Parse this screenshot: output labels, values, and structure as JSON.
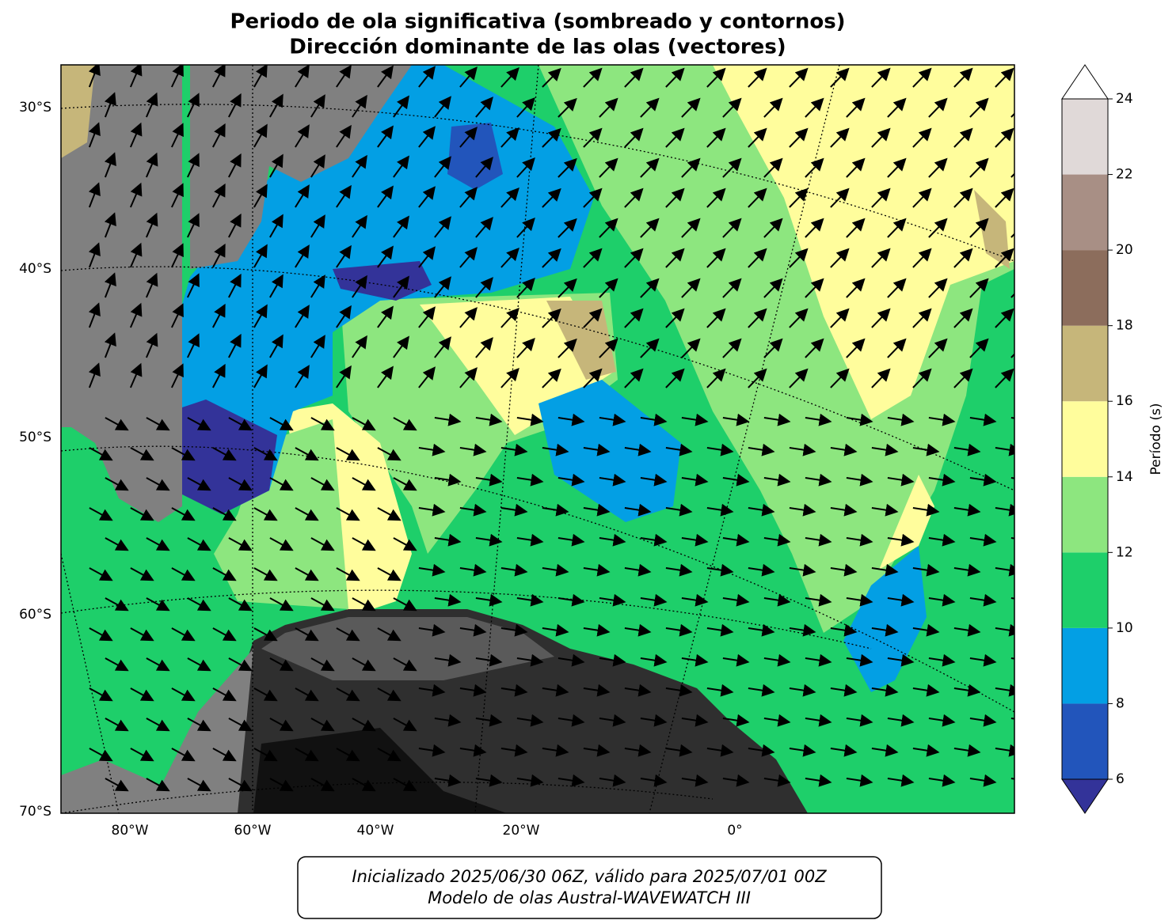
{
  "title": [
    "Periodo de ola significativa (sombreado y contornos)",
    "Dirección dominante de las olas (vectores)"
  ],
  "map": {
    "lat_labels": [
      "30°S",
      "40°S",
      "50°S",
      "60°S",
      "70°S"
    ],
    "lon_labels": [
      "80°W",
      "60°W",
      "40°W",
      "20°W",
      "0°"
    ]
  },
  "colorbar": {
    "label": "Período (s)",
    "lim": [
      6,
      24
    ],
    "ticks": [
      6,
      8,
      10,
      12,
      14,
      16,
      18,
      20,
      22,
      24
    ],
    "colors": [
      "#2255bb",
      "#039fe4",
      "#1ecf6a",
      "#8de67f",
      "#fffd9c",
      "#c6b67a",
      "#8c6d5c",
      "#a88f85",
      "#e0d9d8"
    ],
    "under_color": "#333399",
    "over_color": "#ffffff"
  },
  "caption": [
    "Inicializado 2025/06/30 06Z, válido para 2025/07/01 00Z",
    "Modelo de olas Austral-WAVEWATCH III"
  ]
}
